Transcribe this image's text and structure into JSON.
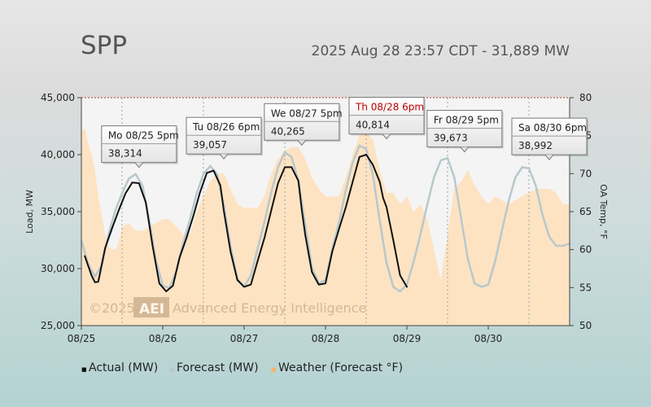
{
  "header": {
    "title": "SPP",
    "subtitle": "2025 Aug 28 23:57 CDT - 31,889 MW"
  },
  "watermark": {
    "prefix": "©2025",
    "badge": "AEI",
    "text": "Advanced Energy Intelligence"
  },
  "legend": {
    "items": [
      {
        "label": "Actual (MW)",
        "color": "#111111",
        "symbol": "■"
      },
      {
        "label": "Forecast (MW)",
        "color": "#b8c8cc",
        "symbol": "■"
      },
      {
        "label": "Weather (Forecast °F)",
        "color": "#f7b36b",
        "symbol": "■"
      }
    ]
  },
  "chart_data": {
    "type": "line",
    "ylabel": "Load, MW",
    "y2label": "OA Temp, °F",
    "ylim": [
      25000,
      45000
    ],
    "y2lim": [
      50,
      80
    ],
    "yticks": [
      "25,000",
      "30,000",
      "35,000",
      "40,000",
      "45,000"
    ],
    "y2ticks": [
      "50",
      "55",
      "60",
      "65",
      "70",
      "75",
      "80"
    ],
    "xlim": [
      0,
      144
    ],
    "xticks": [
      {
        "label": "08/25",
        "hour": 0
      },
      {
        "label": "08/26",
        "hour": 24
      },
      {
        "label": "08/27",
        "hour": 48
      },
      {
        "label": "08/28",
        "hour": 72
      },
      {
        "label": "08/29",
        "hour": 96
      },
      {
        "label": "08/30",
        "hour": 120
      }
    ],
    "series": [
      {
        "name": "Actual (MW)",
        "color": "#111111",
        "hours": [
          1,
          3,
          4,
          5,
          7,
          9,
          11,
          13,
          15,
          17,
          19,
          21,
          23,
          25,
          27,
          29,
          31,
          33,
          35,
          37,
          39,
          41,
          42,
          44,
          46,
          48,
          50,
          52,
          54,
          56,
          58,
          60,
          62,
          64,
          65,
          66,
          68,
          70,
          72,
          74,
          76,
          78,
          80,
          82,
          84,
          86,
          88,
          89,
          90,
          92,
          94,
          96
        ],
        "values": [
          31100,
          29400,
          28800,
          28850,
          31800,
          33500,
          35100,
          36600,
          37550,
          37500,
          35800,
          32000,
          28700,
          28000,
          28500,
          31000,
          32700,
          34600,
          36700,
          38400,
          38600,
          37300,
          35100,
          31500,
          29000,
          28400,
          28600,
          30700,
          32700,
          35100,
          37500,
          38900,
          38900,
          37700,
          35200,
          33000,
          29700,
          28600,
          28700,
          31500,
          33500,
          35400,
          37600,
          39800,
          40000,
          39100,
          37600,
          36200,
          35400,
          32500,
          29400,
          28400
        ]
      },
      {
        "name": "Forecast (MW)",
        "color": "#b8c8cc",
        "hours": [
          0,
          2,
          4,
          6,
          8,
          10,
          12,
          14,
          16,
          18,
          20,
          22,
          24,
          26,
          28,
          30,
          32,
          34,
          36,
          38,
          40,
          42,
          44,
          46,
          48,
          50,
          52,
          54,
          56,
          58,
          60,
          62,
          64,
          66,
          68,
          70,
          72,
          74,
          76,
          78,
          80,
          82,
          84,
          86,
          88,
          90,
          92,
          94,
          96,
          98,
          100,
          102,
          104,
          106,
          108,
          110,
          112,
          114,
          116,
          118,
          120,
          122,
          124,
          126,
          128,
          130,
          132,
          134,
          136,
          138,
          140,
          142,
          144
        ],
        "values": [
          32500,
          30400,
          29300,
          30300,
          33000,
          35100,
          36600,
          37900,
          38300,
          37300,
          34300,
          30700,
          28500,
          28300,
          29800,
          32200,
          34300,
          36600,
          38300,
          39000,
          38300,
          35600,
          32000,
          29100,
          28400,
          29400,
          31800,
          34100,
          36700,
          38900,
          40200,
          39800,
          37700,
          33900,
          30100,
          28700,
          29000,
          31700,
          34100,
          36900,
          39300,
          40800,
          40500,
          38200,
          34200,
          30500,
          28400,
          28000,
          28600,
          30600,
          33000,
          35600,
          38000,
          39500,
          39700,
          38000,
          34400,
          30800,
          28700,
          28400,
          28600,
          30600,
          33300,
          35900,
          38000,
          38900,
          38800,
          37300,
          34700,
          32800,
          32000,
          32000,
          32200
        ]
      },
      {
        "name": "Weather (Forecast °F)",
        "color": "#f7b36b",
        "hours": [
          0,
          1,
          2,
          3,
          4,
          5,
          6,
          7,
          8,
          9,
          10,
          11,
          12,
          14,
          16,
          18,
          20,
          22,
          24,
          26,
          28,
          30,
          32,
          34,
          36,
          38,
          40,
          42,
          44,
          46,
          48,
          50,
          52,
          54,
          56,
          58,
          60,
          62,
          64,
          66,
          68,
          70,
          72,
          74,
          76,
          78,
          80,
          82,
          84,
          86,
          88,
          90,
          92,
          94,
          96,
          98,
          100,
          102,
          104,
          106,
          108,
          110,
          112,
          114,
          116,
          118,
          120,
          122,
          124,
          126,
          128,
          130,
          132,
          134,
          136,
          138,
          140,
          142,
          144
        ],
        "values": [
          75.5,
          76.0,
          74.0,
          72.5,
          70.5,
          67.0,
          64.5,
          62.0,
          60.5,
          60.0,
          60.0,
          61.0,
          63.0,
          63.5,
          62.5,
          62.5,
          63.0,
          63.5,
          64.0,
          64.0,
          63.0,
          62.0,
          62.0,
          65.0,
          67.0,
          69.0,
          70.0,
          70.0,
          68.0,
          66.0,
          65.5,
          65.5,
          65.5,
          67.0,
          70.0,
          72.0,
          73.0,
          73.5,
          73.5,
          72.0,
          69.5,
          68.0,
          67.0,
          67.0,
          67.0,
          69.5,
          72.5,
          75.0,
          75.5,
          74.5,
          70.5,
          67.5,
          67.5,
          66.0,
          67.0,
          65.0,
          66.0,
          64.0,
          60.0,
          56.0,
          62.0,
          68.0,
          69.0,
          70.5,
          68.5,
          67.0,
          66.0,
          67.0,
          66.5,
          66.0,
          66.5,
          67.0,
          67.5,
          68.0,
          68.0,
          68.0,
          67.5,
          66.0,
          66.0
        ]
      }
    ],
    "annotations": [
      {
        "label": "Mo 08/25 5pm",
        "value": "38,314",
        "hour": 17,
        "y": 38314,
        "highlight": false
      },
      {
        "label": "Tu 08/26 6pm",
        "value": "39,057",
        "hour": 42,
        "y": 39057,
        "highlight": false
      },
      {
        "label": "We 08/27 5pm",
        "value": "40,265",
        "hour": 65,
        "y": 40265,
        "highlight": false
      },
      {
        "label": "Th 08/28 6pm",
        "value": "40,814",
        "hour": 90,
        "y": 40814,
        "highlight": true
      },
      {
        "label": "Fr 08/29 5pm",
        "value": "39,673",
        "hour": 113,
        "y": 39673,
        "highlight": false
      },
      {
        "label": "Sa 08/30 6pm",
        "value": "38,992",
        "hour": 138,
        "y": 38992,
        "highlight": false
      }
    ]
  }
}
